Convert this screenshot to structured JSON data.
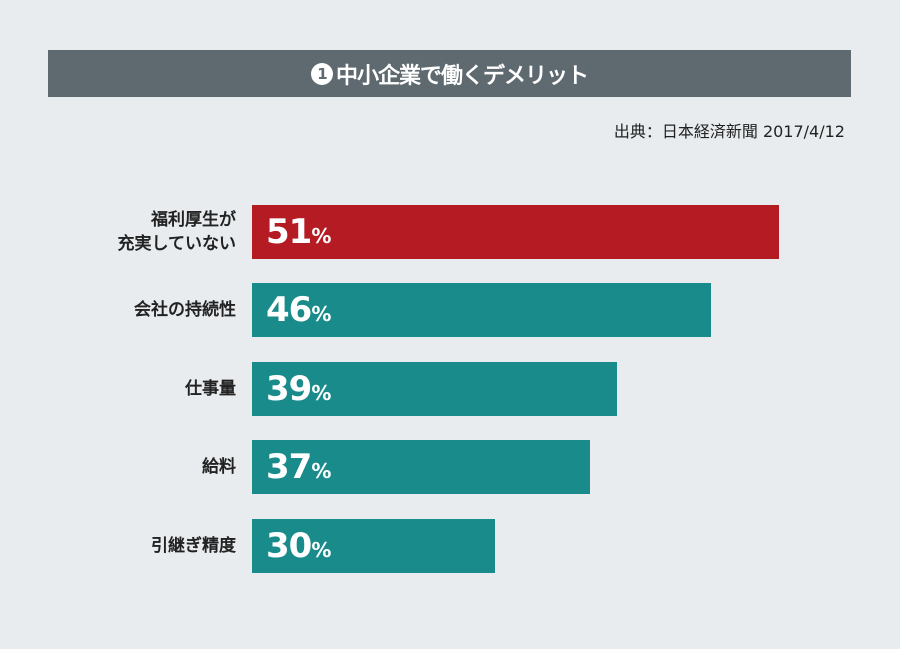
{
  "chart_data": {
    "type": "bar",
    "orientation": "horizontal",
    "title_number": "1",
    "title": "中小企業で働くデメリット",
    "source": "出典：日本経済新聞 2017/4/12",
    "categories": [
      [
        "福利厚生が",
        "充実していない"
      ],
      [
        "会社の持続性"
      ],
      [
        "仕事量"
      ],
      [
        "給料"
      ],
      [
        "引継ぎ精度"
      ]
    ],
    "values": [
      51,
      46,
      39,
      37,
      30
    ],
    "unit": "%",
    "colors": [
      "#b51b23",
      "#1a8b8b",
      "#1a8b8b",
      "#1a8b8b",
      "#1a8b8b"
    ],
    "xlim": [
      12,
      54
    ],
    "grid": false
  }
}
